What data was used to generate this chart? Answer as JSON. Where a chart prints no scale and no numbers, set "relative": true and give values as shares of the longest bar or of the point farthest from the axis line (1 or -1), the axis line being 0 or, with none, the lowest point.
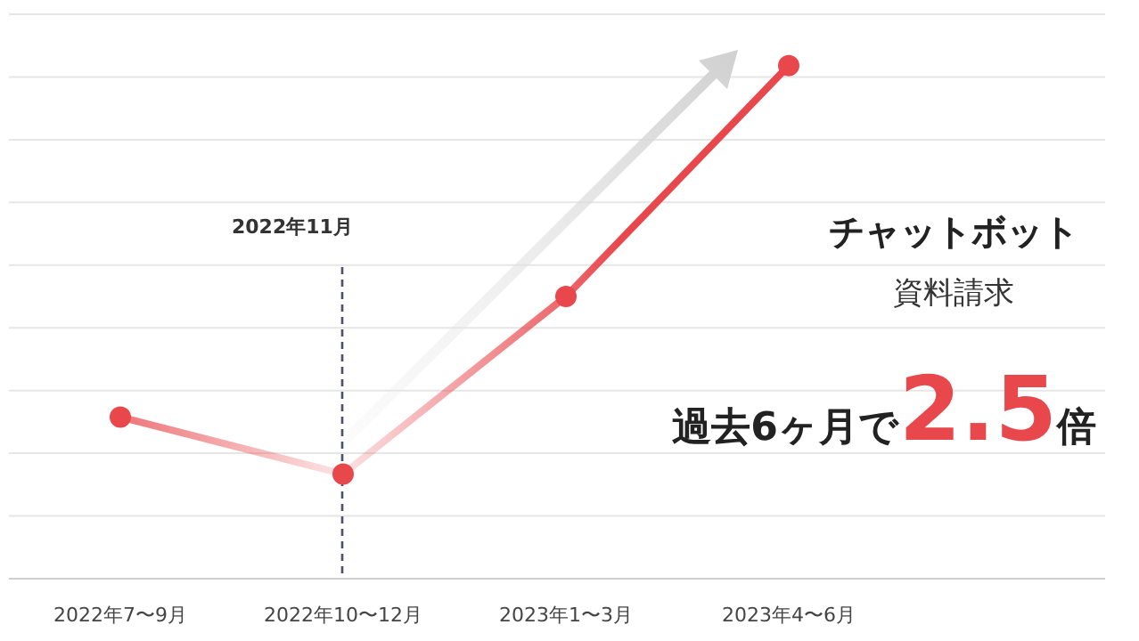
{
  "chart_data": {
    "type": "line",
    "title": "チャットボット",
    "subtitle": "資料請求",
    "categories": [
      "2022年7〜9月",
      "2022年10〜12月",
      "2023年1〜3月",
      "2023年4〜6月"
    ],
    "series": [
      {
        "color": "#e8474c",
        "values": [
          0.315,
          0.204,
          0.55,
          1
        ]
      }
    ],
    "relative": true,
    "grid": "y",
    "marker": "circle",
    "ref_lines": [
      {
        "axis": "x",
        "value": "2022年10〜12月",
        "label": "2022年11月",
        "line_style": "dashed",
        "color": "#4a4f6a"
      }
    ],
    "annotations": [
      "過去6ヶ月で**2.5**倍"
    ]
  }
}
